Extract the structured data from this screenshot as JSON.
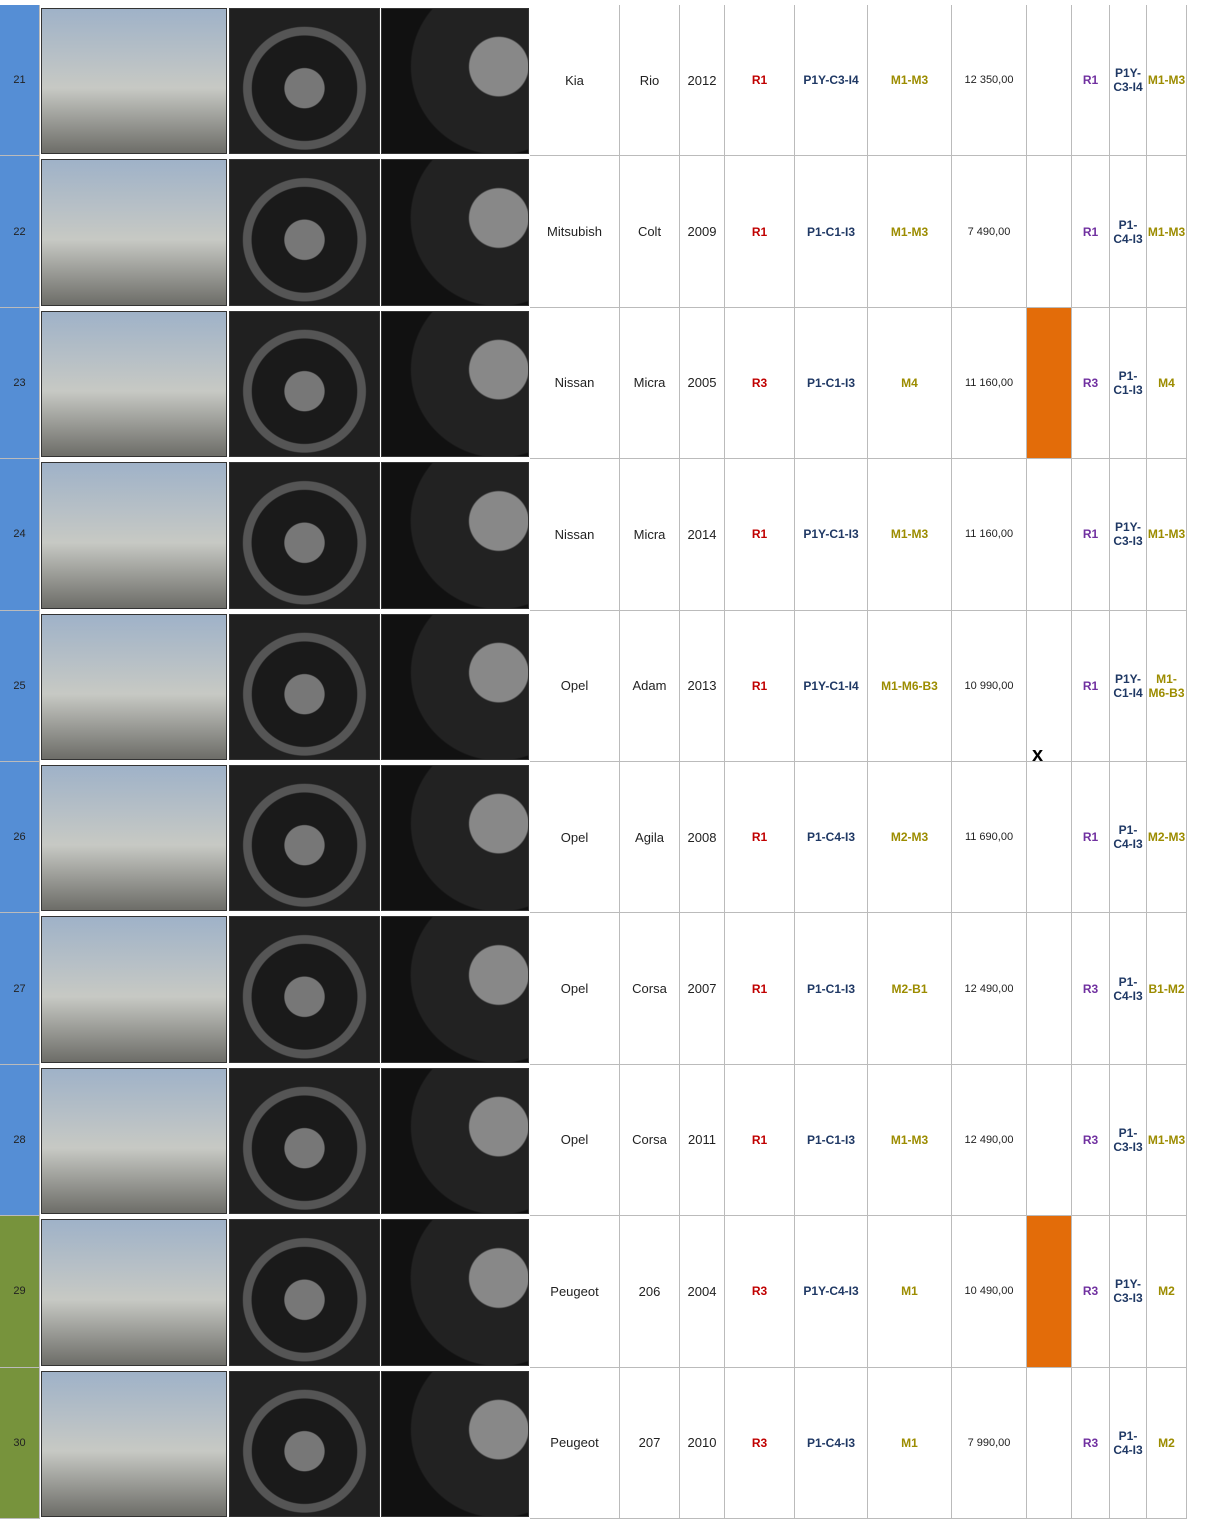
{
  "rows": [
    {
      "no": "21",
      "brand": "Kia",
      "model": "Rio",
      "year": "2012",
      "r": "R1",
      "p": "P1Y-C3-I4",
      "m": "M1-M3",
      "price": "12 350,00",
      "r2": "R1",
      "p2": "P1Y-C3-I4",
      "m2": "M1-M3",
      "stripe_color": "#558ed5"
    },
    {
      "no": "22",
      "brand": "Mitsubish",
      "model": "Colt",
      "year": "2009",
      "r": "R1",
      "p": "P1-C1-I3",
      "m": "M1-M3",
      "price": "7 490,00",
      "r2": "R1",
      "p2": "P1-C4-I3",
      "m2": "M1-M3",
      "stripe_color": "#558ed5"
    },
    {
      "no": "23",
      "brand": "Nissan",
      "model": "Micra",
      "year": "2005",
      "r": "R3",
      "p": "P1-C1-I3",
      "m": "M4",
      "price": "11 160,00",
      "r2": "R3",
      "p2": "P1-C1-I3",
      "m2": "M4",
      "stripe_color": "#558ed5",
      "flag_color": "#e36c09"
    },
    {
      "no": "24",
      "brand": "Nissan",
      "model": "Micra",
      "year": "2014",
      "r": "R1",
      "p": "P1Y-C1-I3",
      "m": "M1-M3",
      "price": "11 160,00",
      "r2": "R1",
      "p2": "P1Y-C3-I3",
      "m2": "M1-M3",
      "stripe_color": "#558ed5"
    },
    {
      "no": "25",
      "brand": "Opel",
      "model": "Adam",
      "year": "2013",
      "r": "R1",
      "p": "P1Y-C1-I4",
      "m": "M1-M6-B3",
      "price": "10 990,00",
      "r2": "R1",
      "p2": "P1Y-C1-I4",
      "m2": "M1-M6-B3",
      "stripe_color": "#558ed5",
      "mark": "x"
    },
    {
      "no": "26",
      "brand": "Opel",
      "model": "Agila",
      "year": "2008",
      "r": "R1",
      "p": "P1-C4-I3",
      "m": "M2-M3",
      "price": "11 690,00",
      "r2": "R1",
      "p2": "P1-C4-I3",
      "m2": "M2-M3",
      "stripe_color": "#558ed5"
    },
    {
      "no": "27",
      "brand": "Opel",
      "model": "Corsa",
      "year": "2007",
      "r": "R1",
      "p": "P1-C1-I3",
      "m": "M2-B1",
      "price": "12 490,00",
      "r2": "R3",
      "p2": "P1-C4-I3",
      "m2": "B1-M2",
      "stripe_color": "#558ed5"
    },
    {
      "no": "28",
      "brand": "Opel",
      "model": "Corsa",
      "year": "2011",
      "r": "R1",
      "p": "P1-C1-I3",
      "m": "M1-M3",
      "price": "12 490,00",
      "r2": "R3",
      "p2": "P1-C3-I3",
      "m2": "M1-M3",
      "stripe_color": "#558ed5"
    },
    {
      "no": "29",
      "brand": "Peugeot",
      "model": "206",
      "year": "2004",
      "r": "R3",
      "p": "P1Y-C4-I3",
      "m": "M1",
      "price": "10 490,00",
      "r2": "R3",
      "p2": "P1Y-C3-I3",
      "m2": "M2",
      "stripe_color": "#77933c",
      "flag_color": "#e36c09"
    },
    {
      "no": "30",
      "brand": "Peugeot",
      "model": "207",
      "year": "2010",
      "r": "R3",
      "p": "P1-C4-I3",
      "m": "M1",
      "price": "7 990,00",
      "r2": "R3",
      "p2": "P1-C4-I3",
      "m2": "M2",
      "stripe_color": "#77933c"
    }
  ]
}
